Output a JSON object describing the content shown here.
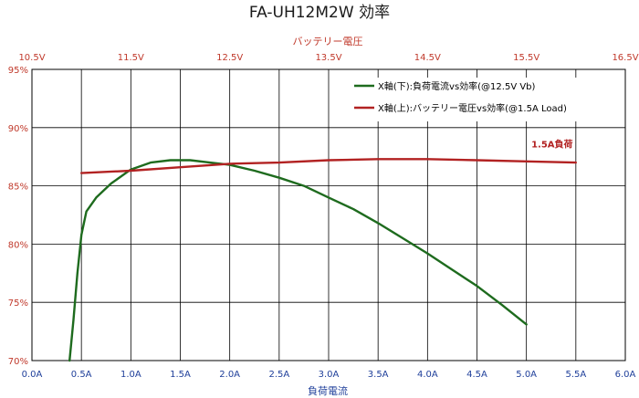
{
  "chart_data": {
    "type": "line",
    "title": "FA-UH12M2W  効率",
    "xlabel": "負荷電流",
    "x2label": "バッテリー電圧",
    "xlim": [
      0.0,
      6.0
    ],
    "x_ticks": [
      "0.0A",
      "0.5A",
      "1.0A",
      "1.5A",
      "2.0A",
      "2.5A",
      "3.0A",
      "3.5A",
      "4.0A",
      "4.5A",
      "5.0A",
      "5.5A",
      "6.0A"
    ],
    "x2lim": [
      10.5,
      16.5
    ],
    "x2_ticks": [
      "10.5V",
      "11.5V",
      "12.5V",
      "13.5V",
      "14.5V",
      "15.5V",
      "16.5V"
    ],
    "ylim": [
      70,
      95
    ],
    "y_ticks": [
      "70%",
      "75%",
      "80%",
      "85%",
      "90%",
      "95%"
    ],
    "grid": true,
    "legend_position": "top-right",
    "series": [
      {
        "name": "X軸(下):負荷電流vs効率(@12.5V Vb)",
        "color": "#1e6b1e",
        "axis": "bottom",
        "points": [
          [
            0.38,
            70.0
          ],
          [
            0.42,
            73.5
          ],
          [
            0.46,
            77.5
          ],
          [
            0.5,
            80.8
          ],
          [
            0.55,
            82.8
          ],
          [
            0.65,
            84.0
          ],
          [
            0.8,
            85.2
          ],
          [
            1.0,
            86.4
          ],
          [
            1.2,
            87.0
          ],
          [
            1.4,
            87.2
          ],
          [
            1.6,
            87.2
          ],
          [
            1.8,
            87.0
          ],
          [
            2.0,
            86.8
          ],
          [
            2.25,
            86.3
          ],
          [
            2.5,
            85.7
          ],
          [
            2.75,
            85.0
          ],
          [
            3.0,
            84.0
          ],
          [
            3.25,
            83.0
          ],
          [
            3.5,
            81.8
          ],
          [
            3.75,
            80.5
          ],
          [
            4.0,
            79.2
          ],
          [
            4.25,
            77.8
          ],
          [
            4.5,
            76.4
          ],
          [
            4.75,
            74.8
          ],
          [
            5.0,
            73.1
          ]
        ]
      },
      {
        "name": "X軸(上):バッテリー電圧vs効率(@1.5A Load)",
        "color": "#b22222",
        "axis": "top",
        "points": [
          [
            11.0,
            86.1
          ],
          [
            11.5,
            86.3
          ],
          [
            12.0,
            86.6
          ],
          [
            12.5,
            86.9
          ],
          [
            13.0,
            87.0
          ],
          [
            13.5,
            87.2
          ],
          [
            14.0,
            87.3
          ],
          [
            14.5,
            87.3
          ],
          [
            15.0,
            87.2
          ],
          [
            15.5,
            87.1
          ],
          [
            16.0,
            87.0
          ]
        ]
      }
    ],
    "annotations": [
      {
        "text": "1.5A負荷",
        "x2": 15.55,
        "y": 88.3,
        "color": "#b22222"
      }
    ]
  }
}
